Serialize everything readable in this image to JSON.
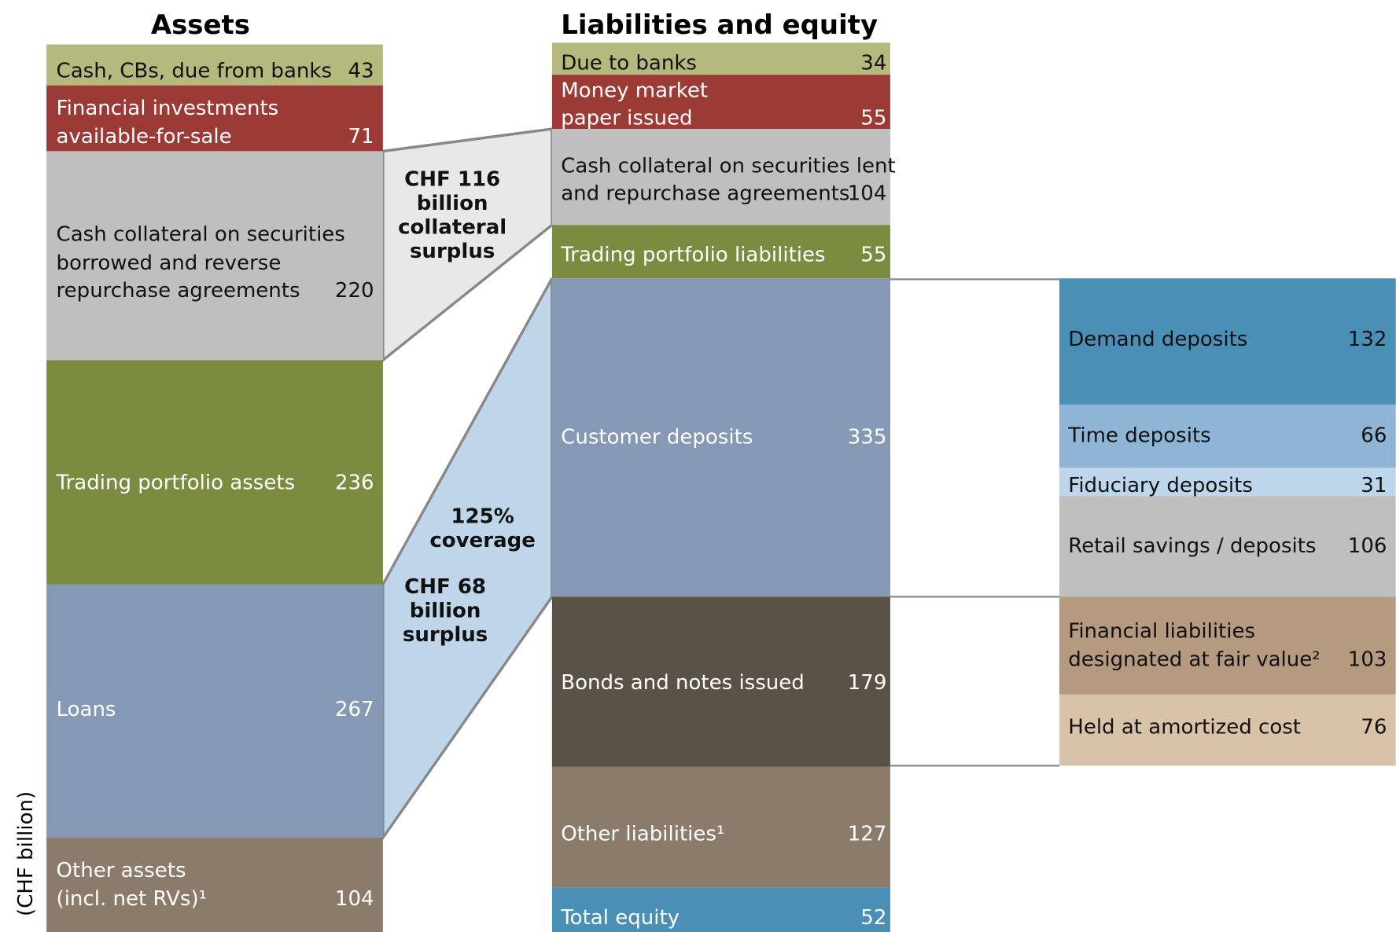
{
  "titles": {
    "assets": "Assets",
    "liabilities": "Liabilities and equity"
  },
  "unit": "(CHF billion)",
  "assets": [
    {
      "label": [
        "Cash, CBs,  due from banks"
      ],
      "value": 43
    },
    {
      "label": [
        "Financial investments",
        "available-for-sale"
      ],
      "value": 71
    },
    {
      "label": [
        "Cash collateral on securities",
        "borrowed and reverse",
        "repurchase agreements"
      ],
      "value": 220
    },
    {
      "label": [
        "Trading portfolio assets"
      ],
      "value": 236
    },
    {
      "label": [
        "Loans"
      ],
      "value": 267
    },
    {
      "label": [
        "Other assets",
        "(incl. net RVs)¹"
      ],
      "value": 104
    }
  ],
  "liabilities": [
    {
      "label": [
        "Due to banks"
      ],
      "value": 34
    },
    {
      "label": [
        "Money market",
        "paper issued"
      ],
      "value": 55
    },
    {
      "label": [
        "Cash collateral on securities lent",
        "and repurchase agreements"
      ],
      "value": 104
    },
    {
      "label": [
        "Trading portfolio liabilities"
      ],
      "value": 55
    },
    {
      "label": [
        "Customer deposits"
      ],
      "value": 335
    },
    {
      "label": [
        "Bonds and notes issued"
      ],
      "value": 179
    },
    {
      "label": [
        "Other liabilities¹"
      ],
      "value": 127
    },
    {
      "label": [
        "Total equity"
      ],
      "value": 52
    }
  ],
  "breakdown": [
    {
      "label": [
        "Demand deposits"
      ],
      "value": 132
    },
    {
      "label": [
        "Time deposits"
      ],
      "value": 66
    },
    {
      "label": [
        "Fiduciary deposits"
      ],
      "value": 31
    },
    {
      "label": [
        "Retail savings / deposits"
      ],
      "value": 106
    },
    {
      "label": [
        "Financial liabilities",
        "designated at fair value²"
      ],
      "value": 103
    },
    {
      "label": [
        "Held at amortized cost"
      ],
      "value": 76
    }
  ],
  "annotations": [
    [
      "CHF 116",
      "billion",
      "collateral",
      "surplus"
    ],
    [
      "125%",
      "coverage"
    ],
    [
      "CHF 68",
      "billion",
      "surplus"
    ]
  ]
}
